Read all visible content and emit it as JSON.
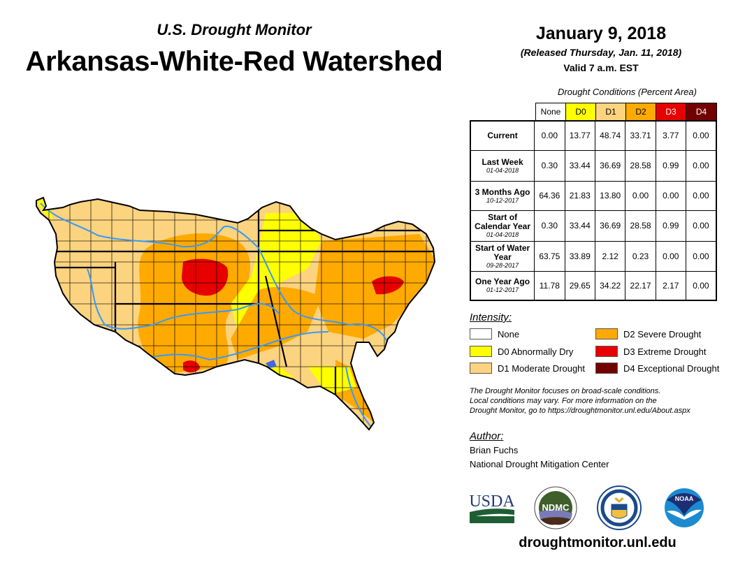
{
  "header": {
    "subtitle": "U.S. Drought Monitor",
    "title": "Arkansas-White-Red Watershed",
    "date": "January 9, 2018",
    "released": "(Released Thursday, Jan. 11, 2018)",
    "valid": "Valid 7 a.m. EST"
  },
  "table": {
    "caption": "Drought Conditions (Percent Area)",
    "columns": [
      {
        "label": "None",
        "color": "#ffffff",
        "text_color": "#000000"
      },
      {
        "label": "D0",
        "color": "#ffff00",
        "text_color": "#000000"
      },
      {
        "label": "D1",
        "color": "#fcd37f",
        "text_color": "#000000"
      },
      {
        "label": "D2",
        "color": "#ffaa00",
        "text_color": "#000000"
      },
      {
        "label": "D3",
        "color": "#e60000",
        "text_color": "#ffffff"
      },
      {
        "label": "D4",
        "color": "#730000",
        "text_color": "#ffffff"
      }
    ],
    "rows": [
      {
        "label": "Current",
        "sublabel": "",
        "values": [
          "0.00",
          "13.77",
          "48.74",
          "33.71",
          "3.77",
          "0.00"
        ]
      },
      {
        "label": "Last Week",
        "sublabel": "01-04-2018",
        "values": [
          "0.30",
          "33.44",
          "36.69",
          "28.58",
          "0.99",
          "0.00"
        ]
      },
      {
        "label": "3 Months Ago",
        "sublabel": "10-12-2017",
        "values": [
          "64.36",
          "21.83",
          "13.80",
          "0.00",
          "0.00",
          "0.00"
        ]
      },
      {
        "label": "Start of Calendar Year",
        "sublabel": "01-04-2018",
        "values": [
          "0.30",
          "33.44",
          "36.69",
          "28.58",
          "0.99",
          "0.00"
        ]
      },
      {
        "label": "Start of Water Year",
        "sublabel": "09-28-2017",
        "values": [
          "63.75",
          "33.89",
          "2.12",
          "0.23",
          "0.00",
          "0.00"
        ]
      },
      {
        "label": "One Year Ago",
        "sublabel": "01-12-2017",
        "values": [
          "11.78",
          "29.65",
          "34.22",
          "22.17",
          "2.17",
          "0.00"
        ]
      }
    ]
  },
  "legend": {
    "title": "Intensity:",
    "items": [
      {
        "label": "None",
        "color": "#ffffff"
      },
      {
        "label": "D0 Abnormally Dry",
        "color": "#ffff00"
      },
      {
        "label": "D1 Moderate Drought",
        "color": "#fcd37f"
      },
      {
        "label": "D2 Severe Drought",
        "color": "#ffaa00"
      },
      {
        "label": "D3 Extreme Drought",
        "color": "#e60000"
      },
      {
        "label": "D4 Exceptional Drought",
        "color": "#730000"
      }
    ]
  },
  "note": {
    "line1": "The Drought Monitor focuses on broad-scale conditions.",
    "line2": "Local conditions may vary. For more information on the",
    "line3": "Drought Monitor, go to https://droughtmonitor.unl.edu/About.aspx"
  },
  "author": {
    "title": "Author:",
    "name": "Brian Fuchs",
    "org": "National Drought Mitigation Center"
  },
  "logos": {
    "usda": "USDA",
    "ndmc": "NDMC",
    "noaa": "NOAA"
  },
  "footer": {
    "website": "droughtmonitor.unl.edu"
  },
  "map": {
    "river_color": "#3399ff",
    "border_color": "#000000"
  }
}
